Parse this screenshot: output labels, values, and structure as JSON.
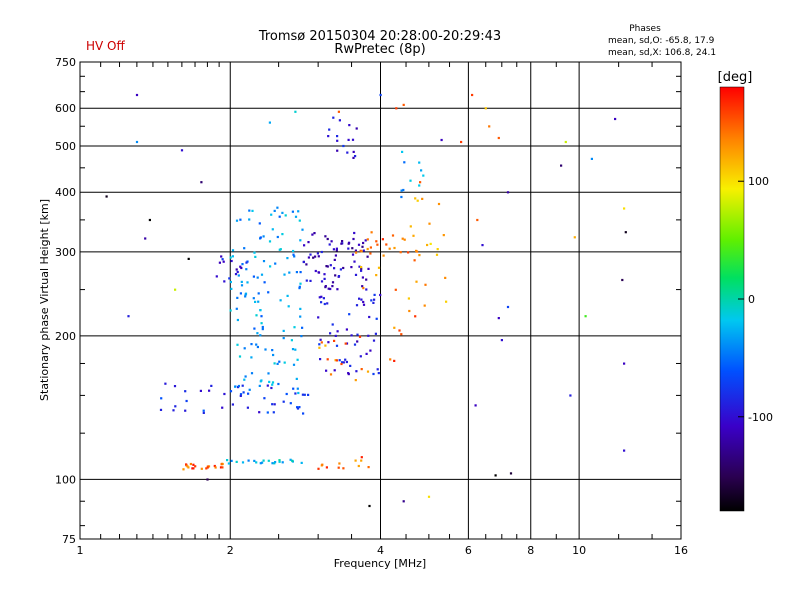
{
  "header": {
    "hv_status": "HV Off",
    "hv_status_color": "#cc0000",
    "title_line1": "Tromsø 20150304 20:28:00-20:29:43",
    "title_line2": "RwPretec (8p)"
  },
  "stats": {
    "heading": "Phases",
    "line_o": "mean, sd,O: -65.8, 17.9",
    "line_x": "mean, sd,X: 106.8, 24.1"
  },
  "colorbar": {
    "unit": "[deg]",
    "ticks": [
      "100",
      "0",
      "-100"
    ],
    "tick_values": [
      100,
      0,
      -100
    ],
    "range": [
      -180,
      180
    ]
  },
  "chart_data": {
    "type": "scatter",
    "title": "Tromsø 20150304 20:28:00-20:29:43",
    "subtitle": "RwPretec (8p)",
    "xlabel": "Frequency [MHz]",
    "ylabel": "Stationary phase Virtual Height [km]",
    "x_scale": "log",
    "y_scale": "log",
    "xlim": [
      1,
      16
    ],
    "ylim": [
      75,
      750
    ],
    "x_ticks": [
      1,
      2,
      4,
      6,
      8,
      10,
      16
    ],
    "x_tick_labels": [
      "1",
      "2",
      "4",
      "6",
      "8",
      "10",
      "16"
    ],
    "y_ticks": [
      75,
      100,
      200,
      300,
      400,
      500,
      600,
      750
    ],
    "y_tick_labels": [
      "75",
      "100",
      "200",
      "300",
      "400",
      "500",
      "600",
      "750"
    ],
    "grid": true,
    "color_value": "phase [deg]",
    "clusters": [
      {
        "f_start": 1.6,
        "f_end": 1.95,
        "h_start": 105,
        "h_end": 108,
        "phase": 150,
        "n": 22
      },
      {
        "f_start": 1.95,
        "f_end": 2.9,
        "h_start": 108,
        "h_end": 110,
        "phase": -20,
        "n": 22
      },
      {
        "f_start": 1.45,
        "f_end": 2.95,
        "h_start": 137,
        "h_end": 160,
        "phase": -80,
        "n": 45
      },
      {
        "f_start": 2.0,
        "f_end": 2.8,
        "h_start": 150,
        "h_end": 380,
        "phase": -35,
        "n": 130
      },
      {
        "f_start": 1.85,
        "f_end": 2.3,
        "h_start": 260,
        "h_end": 295,
        "phase": -95,
        "n": 14
      },
      {
        "f_start": 2.8,
        "f_end": 3.8,
        "h_start": 250,
        "h_end": 330,
        "phase": -110,
        "n": 75
      },
      {
        "f_start": 3.0,
        "f_end": 4.0,
        "h_start": 165,
        "h_end": 245,
        "phase": -95,
        "n": 55
      },
      {
        "f_start": 3.0,
        "f_end": 3.8,
        "h_start": 160,
        "h_end": 200,
        "phase": 140,
        "n": 14
      },
      {
        "f_start": 3.5,
        "f_end": 4.0,
        "h_start": 250,
        "h_end": 330,
        "phase": 135,
        "n": 14
      },
      {
        "f_start": 4.0,
        "f_end": 4.8,
        "h_start": 170,
        "h_end": 330,
        "phase": 145,
        "n": 22
      },
      {
        "f_start": 4.5,
        "f_end": 5.6,
        "h_start": 230,
        "h_end": 400,
        "phase": 120,
        "n": 18
      },
      {
        "f_start": 3.0,
        "f_end": 3.8,
        "h_start": 105,
        "h_end": 112,
        "phase": 145,
        "n": 12
      },
      {
        "f_start": 3.1,
        "f_end": 3.6,
        "h_start": 470,
        "h_end": 600,
        "phase": -95,
        "n": 16
      },
      {
        "f_start": 4.2,
        "f_end": 5.0,
        "h_start": 390,
        "h_end": 500,
        "phase": -30,
        "n": 10
      }
    ],
    "sparse_points": [
      [
        1.13,
        392,
        -170
      ],
      [
        1.25,
        220,
        -90
      ],
      [
        1.3,
        640,
        -110
      ],
      [
        1.3,
        510,
        -40
      ],
      [
        1.35,
        320,
        -120
      ],
      [
        1.38,
        350,
        -180
      ],
      [
        1.55,
        250,
        80
      ],
      [
        1.6,
        490,
        -100
      ],
      [
        1.65,
        290,
        -180
      ],
      [
        1.75,
        420,
        -140
      ],
      [
        1.8,
        100,
        -150
      ],
      [
        2.4,
        560,
        -30
      ],
      [
        2.7,
        590,
        -10
      ],
      [
        3.3,
        590,
        150
      ],
      [
        4.0,
        640,
        -70
      ],
      [
        4.3,
        600,
        160
      ],
      [
        4.45,
        610,
        150
      ],
      [
        4.8,
        420,
        150
      ],
      [
        5.3,
        515,
        -110
      ],
      [
        5.8,
        510,
        160
      ],
      [
        6.1,
        640,
        160
      ],
      [
        6.25,
        350,
        150
      ],
      [
        6.4,
        310,
        -100
      ],
      [
        6.5,
        600,
        110
      ],
      [
        6.6,
        550,
        140
      ],
      [
        6.9,
        520,
        150
      ],
      [
        7.2,
        400,
        -120
      ],
      [
        7.3,
        103,
        -160
      ],
      [
        6.8,
        102,
        -180
      ],
      [
        6.2,
        143,
        -110
      ],
      [
        7.0,
        196,
        -100
      ],
      [
        6.9,
        218,
        -110
      ],
      [
        9.2,
        455,
        -140
      ],
      [
        9.4,
        510,
        80
      ],
      [
        9.8,
        322,
        120
      ],
      [
        10.6,
        470,
        -40
      ],
      [
        11.8,
        570,
        -110
      ],
      [
        12.3,
        370,
        100
      ],
      [
        12.4,
        330,
        -170
      ],
      [
        12.2,
        262,
        -150
      ],
      [
        12.3,
        175,
        -110
      ],
      [
        12.3,
        115,
        -100
      ],
      [
        5.0,
        92,
        100
      ],
      [
        4.45,
        90,
        -130
      ],
      [
        3.8,
        88,
        -180
      ],
      [
        9.6,
        150,
        -90
      ],
      [
        10.3,
        220,
        40
      ],
      [
        7.2,
        230,
        -70
      ]
    ]
  }
}
